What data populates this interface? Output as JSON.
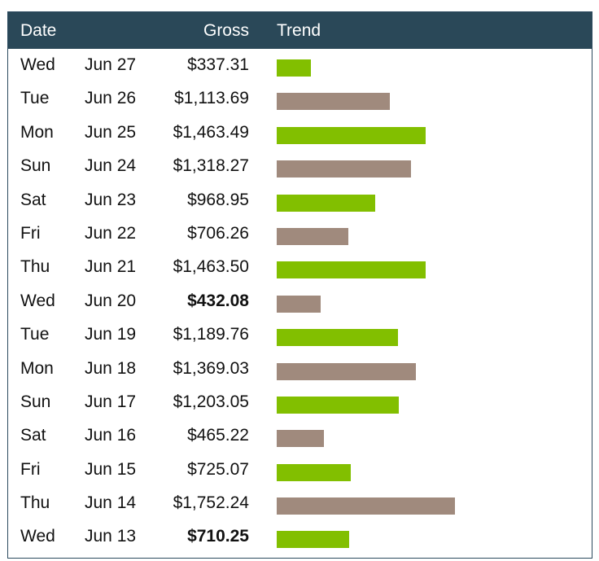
{
  "header": {
    "date": "Date",
    "gross": "Gross",
    "trend": "Trend"
  },
  "colors": {
    "header_bg": "#2a4858",
    "bar_green": "#82bf00",
    "bar_brown": "#a08a7d"
  },
  "chart_data": {
    "type": "bar",
    "orientation": "horizontal",
    "columns": [
      "Date",
      "Gross",
      "Trend"
    ],
    "rows": [
      {
        "day": "Wed",
        "date": "Jun 27",
        "gross": "$337.31",
        "value": 337.31,
        "color": "green",
        "bold": false
      },
      {
        "day": "Tue",
        "date": "Jun 26",
        "gross": "$1,113.69",
        "value": 1113.69,
        "color": "brown",
        "bold": false
      },
      {
        "day": "Mon",
        "date": "Jun 25",
        "gross": "$1,463.49",
        "value": 1463.49,
        "color": "green",
        "bold": false
      },
      {
        "day": "Sun",
        "date": "Jun 24",
        "gross": "$1,318.27",
        "value": 1318.27,
        "color": "brown",
        "bold": false
      },
      {
        "day": "Sat",
        "date": "Jun 23",
        "gross": "$968.95",
        "value": 968.95,
        "color": "green",
        "bold": false
      },
      {
        "day": "Fri",
        "date": "Jun 22",
        "gross": "$706.26",
        "value": 706.26,
        "color": "brown",
        "bold": false
      },
      {
        "day": "Thu",
        "date": "Jun 21",
        "gross": "$1,463.50",
        "value": 1463.5,
        "color": "green",
        "bold": false
      },
      {
        "day": "Wed",
        "date": "Jun 20",
        "gross": "$432.08",
        "value": 432.08,
        "color": "brown",
        "bold": true
      },
      {
        "day": "Tue",
        "date": "Jun 19",
        "gross": "$1,189.76",
        "value": 1189.76,
        "color": "green",
        "bold": false
      },
      {
        "day": "Mon",
        "date": "Jun 18",
        "gross": "$1,369.03",
        "value": 1369.03,
        "color": "brown",
        "bold": false
      },
      {
        "day": "Sun",
        "date": "Jun 17",
        "gross": "$1,203.05",
        "value": 1203.05,
        "color": "green",
        "bold": false
      },
      {
        "day": "Sat",
        "date": "Jun 16",
        "gross": "$465.22",
        "value": 465.22,
        "color": "brown",
        "bold": false
      },
      {
        "day": "Fri",
        "date": "Jun 15",
        "gross": "$725.07",
        "value": 725.07,
        "color": "green",
        "bold": false
      },
      {
        "day": "Thu",
        "date": "Jun 14",
        "gross": "$1,752.24",
        "value": 1752.24,
        "color": "brown",
        "bold": false
      },
      {
        "day": "Wed",
        "date": "Jun 13",
        "gross": "$710.25",
        "value": 710.25,
        "color": "green",
        "bold": true
      }
    ]
  }
}
